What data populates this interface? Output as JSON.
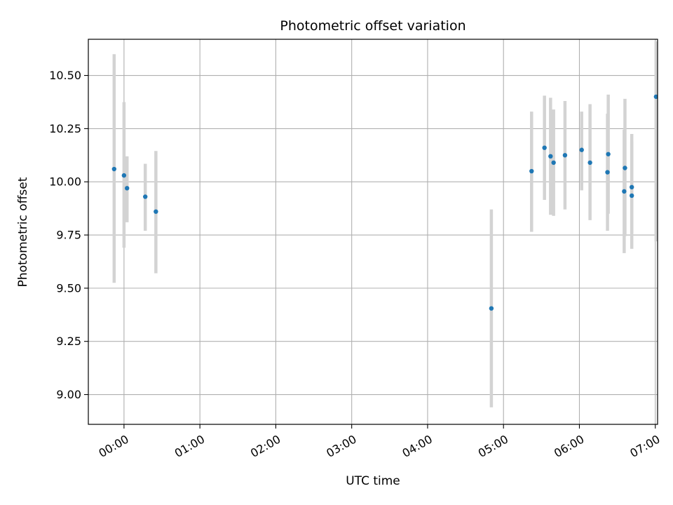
{
  "chart_data": {
    "type": "scatter",
    "title": "Photometric offset variation",
    "xlabel": "UTC time",
    "ylabel": "Photometric offset",
    "grid": true,
    "xlim_hours": [
      -0.47,
      7.03
    ],
    "ylim": [
      8.86,
      10.67
    ],
    "x_ticks": [
      {
        "hour": 0,
        "label": "00:00"
      },
      {
        "hour": 1,
        "label": "01:00"
      },
      {
        "hour": 2,
        "label": "02:00"
      },
      {
        "hour": 3,
        "label": "03:00"
      },
      {
        "hour": 4,
        "label": "04:00"
      },
      {
        "hour": 5,
        "label": "05:00"
      },
      {
        "hour": 6,
        "label": "06:00"
      },
      {
        "hour": 7,
        "label": "07:00"
      }
    ],
    "y_ticks": [
      {
        "value": 9.0,
        "label": "9.00"
      },
      {
        "value": 9.25,
        "label": "9.25"
      },
      {
        "value": 9.5,
        "label": "9.50"
      },
      {
        "value": 9.75,
        "label": "9.75"
      },
      {
        "value": 10.0,
        "label": "10.00"
      },
      {
        "value": 10.25,
        "label": "10.25"
      },
      {
        "value": 10.5,
        "label": "10.50"
      }
    ],
    "series": [
      {
        "name": "offset",
        "color": "#1f77b4",
        "errorbar_color": "#d3d3d3",
        "points": [
          {
            "x": -0.13,
            "y": 10.06,
            "lo": 9.525,
            "hi": 10.6
          },
          {
            "x": 0.0,
            "y": 10.03,
            "lo": 9.69,
            "hi": 10.375
          },
          {
            "x": 0.04,
            "y": 9.97,
            "lo": 9.81,
            "hi": 10.12
          },
          {
            "x": 0.28,
            "y": 9.93,
            "lo": 9.77,
            "hi": 10.085
          },
          {
            "x": 0.42,
            "y": 9.86,
            "lo": 9.57,
            "hi": 10.145
          },
          {
            "x": 4.84,
            "y": 9.405,
            "lo": 8.94,
            "hi": 9.87
          },
          {
            "x": 5.37,
            "y": 10.05,
            "lo": 9.765,
            "hi": 10.33
          },
          {
            "x": 5.54,
            "y": 10.16,
            "lo": 9.915,
            "hi": 10.405
          },
          {
            "x": 5.62,
            "y": 10.12,
            "lo": 9.845,
            "hi": 10.395
          },
          {
            "x": 5.66,
            "y": 10.09,
            "lo": 9.84,
            "hi": 10.34
          },
          {
            "x": 5.81,
            "y": 10.125,
            "lo": 9.87,
            "hi": 10.38
          },
          {
            "x": 6.03,
            "y": 10.15,
            "lo": 9.96,
            "hi": 10.33
          },
          {
            "x": 6.14,
            "y": 10.09,
            "lo": 9.82,
            "hi": 10.365
          },
          {
            "x": 6.38,
            "y": 10.13,
            "lo": 9.85,
            "hi": 10.41
          },
          {
            "x": 6.37,
            "y": 10.045,
            "lo": 9.77,
            "hi": 10.32
          },
          {
            "x": 6.6,
            "y": 10.065,
            "lo": 9.745,
            "hi": 10.39
          },
          {
            "x": 6.59,
            "y": 9.955,
            "lo": 9.665,
            "hi": 10.245
          },
          {
            "x": 6.69,
            "y": 9.975,
            "lo": 9.76,
            "hi": 10.19
          },
          {
            "x": 6.69,
            "y": 9.935,
            "lo": 9.685,
            "hi": 10.225
          },
          {
            "x": 7.01,
            "y": 10.4,
            "lo": 9.72,
            "hi": 10.66
          }
        ]
      }
    ]
  }
}
